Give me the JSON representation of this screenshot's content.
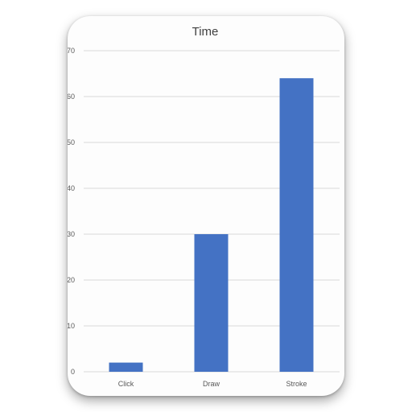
{
  "chart_data": {
    "type": "bar",
    "title": "Time",
    "categories": [
      "Click",
      "Draw",
      "Stroke"
    ],
    "values": [
      2,
      30,
      64
    ],
    "xlabel": "",
    "ylabel": "",
    "ylim": [
      0,
      70
    ],
    "yticks": [
      "0",
      "10",
      "20",
      "30",
      "40",
      "50",
      "60",
      "70"
    ],
    "grid": true,
    "legend": "none",
    "bar_color": "#4472c4",
    "grid_color": "#d9d9d9"
  }
}
